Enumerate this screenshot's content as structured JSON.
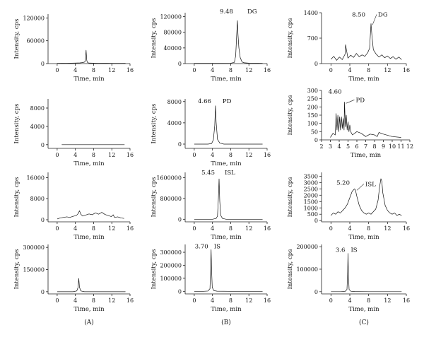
{
  "figure": {
    "column_labels": [
      "(A)",
      "(B)",
      "(C)"
    ],
    "ylabel": "Intensity, cps",
    "xlabel": "Time, min"
  },
  "chart_data": [
    {
      "type": "line",
      "panel": "A1",
      "xlim": [
        -2,
        16
      ],
      "xticks": [
        0,
        4,
        8,
        12,
        16
      ],
      "ylim": [
        0,
        130000
      ],
      "yticks": [
        0,
        60000,
        120000
      ],
      "series": [
        {
          "x": [
            0,
            1,
            2,
            3,
            4,
            5,
            5.5,
            6,
            6.2,
            6.35,
            6.5,
            6.6,
            6.8,
            7,
            8,
            9,
            10,
            11,
            12,
            13,
            14,
            15
          ],
          "y": [
            800,
            900,
            1000,
            1200,
            1500,
            1800,
            2500,
            4000,
            7000,
            35000,
            9000,
            4000,
            2000,
            1500,
            1200,
            1000,
            900,
            900,
            800,
            800,
            800,
            700
          ]
        }
      ],
      "annotations": []
    },
    {
      "type": "line",
      "panel": "B1",
      "xlim": [
        -2,
        16
      ],
      "xticks": [
        0,
        4,
        8,
        12,
        16
      ],
      "ylim": [
        0,
        130000
      ],
      "yticks": [
        0,
        40000,
        80000,
        120000
      ],
      "series": [
        {
          "x": [
            0,
            2,
            4,
            6,
            8,
            8.8,
            9.1,
            9.3,
            9.48,
            9.6,
            9.8,
            10.1,
            10.5,
            11,
            12,
            14,
            15
          ],
          "y": [
            800,
            800,
            800,
            800,
            1000,
            3000,
            20000,
            70000,
            110000,
            75000,
            40000,
            15000,
            4000,
            2000,
            1200,
            900,
            800
          ]
        }
      ],
      "annotations": [
        {
          "label": "9.48",
          "x": 9.48,
          "y": 110000
        },
        {
          "label": "DG",
          "x": 9.48,
          "y": 110000
        }
      ]
    },
    {
      "type": "line",
      "panel": "C1",
      "xlim": [
        -2,
        16
      ],
      "xticks": [
        0,
        4,
        8,
        12,
        16
      ],
      "ylim": [
        0,
        1400
      ],
      "yticks": [
        0,
        700,
        1400
      ],
      "series": [
        {
          "x": [
            0,
            0.6,
            1.2,
            1.8,
            2.4,
            3,
            3.1,
            3.6,
            4.2,
            4.8,
            5.4,
            6,
            6.6,
            7.2,
            7.8,
            8.2,
            8.5,
            8.7,
            9,
            9.6,
            10.2,
            10.8,
            11.4,
            12,
            12.6,
            13.2,
            13.8,
            14.4,
            15
          ],
          "y": [
            120,
            200,
            90,
            180,
            110,
            260,
            520,
            150,
            230,
            170,
            280,
            190,
            240,
            200,
            300,
            420,
            1100,
            760,
            380,
            260,
            180,
            240,
            160,
            210,
            140,
            190,
            120,
            180,
            110
          ]
        }
      ],
      "annotations": [
        {
          "label": "8.50",
          "x": 8.5,
          "y": 1100
        },
        {
          "label": "DG",
          "x": 8.5,
          "y": 1100
        }
      ]
    },
    {
      "type": "line",
      "panel": "A2",
      "xlim": [
        -2,
        16
      ],
      "xticks": [
        0,
        4,
        8,
        12,
        16
      ],
      "ylim": [
        -800,
        10000
      ],
      "yticks": [
        0,
        4000,
        8000
      ],
      "series": [
        {
          "x": [
            1,
            3,
            5,
            7,
            9,
            11,
            13,
            14.8
          ],
          "y": [
            0,
            0,
            0,
            0,
            0,
            0,
            0,
            0
          ]
        }
      ],
      "annotations": []
    },
    {
      "type": "line",
      "panel": "B2",
      "xlim": [
        -2,
        16
      ],
      "xticks": [
        0,
        4,
        8,
        12,
        16
      ],
      "ylim": [
        -800,
        8500
      ],
      "yticks": [
        0,
        4000,
        8000
      ],
      "series": [
        {
          "x": [
            0,
            1,
            2,
            3,
            3.8,
            4.2,
            4.5,
            4.66,
            4.8,
            5.1,
            5.6,
            6.5,
            8,
            10,
            12,
            14,
            15
          ],
          "y": [
            0,
            0,
            0,
            0,
            100,
            800,
            3500,
            7200,
            4200,
            900,
            200,
            0,
            0,
            0,
            0,
            0,
            0
          ]
        }
      ],
      "annotations": [
        {
          "label": "4.66",
          "x": 4.66,
          "y": 7200
        },
        {
          "label": "PD",
          "x": 4.66,
          "y": 7200
        }
      ]
    },
    {
      "type": "line",
      "panel": "C2",
      "xlim": [
        2,
        12
      ],
      "xticks": [
        2,
        3,
        4,
        5,
        6,
        7,
        8,
        9,
        10,
        11,
        12
      ],
      "ylim": [
        0,
        300
      ],
      "yticks": [
        0,
        50,
        100,
        150,
        200,
        250,
        300
      ],
      "series": [
        {
          "x": [
            3,
            3.3,
            3.55,
            3.65,
            3.75,
            3.85,
            3.95,
            4.05,
            4.15,
            4.25,
            4.35,
            4.45,
            4.55,
            4.6,
            4.7,
            4.8,
            4.9,
            5,
            5.1,
            5.2,
            5.3,
            5.5,
            6,
            6.5,
            7,
            7.5,
            8,
            8.3,
            8.5,
            9,
            10,
            11
          ],
          "y": [
            15,
            40,
            30,
            160,
            60,
            150,
            50,
            140,
            60,
            140,
            70,
            130,
            60,
            230,
            80,
            150,
            60,
            110,
            50,
            90,
            50,
            30,
            50,
            40,
            20,
            35,
            30,
            20,
            45,
            35,
            20,
            15
          ]
        }
      ],
      "annotations": [
        {
          "label": "4.60",
          "x": 4.6,
          "y": 230
        },
        {
          "label": "PD",
          "x": 4.6,
          "y": 230
        }
      ]
    },
    {
      "type": "line",
      "panel": "A3",
      "xlim": [
        -2,
        16
      ],
      "xticks": [
        0,
        4,
        8,
        12,
        16
      ],
      "ylim": [
        -800,
        18000
      ],
      "yticks": [
        0,
        8000,
        16000
      ],
      "series": [
        {
          "x": [
            0,
            0.7,
            1.4,
            2.1,
            2.8,
            3.5,
            4.2,
            4.6,
            4.9,
            5.2,
            5.6,
            6.3,
            7,
            7.7,
            8.4,
            9.1,
            9.8,
            10.5,
            11.2,
            11.9,
            12.3,
            12.6,
            13.3,
            14,
            14.7
          ],
          "y": [
            300,
            700,
            900,
            1100,
            900,
            1300,
            1600,
            2300,
            3400,
            2100,
            1400,
            1800,
            2200,
            1900,
            2600,
            2100,
            2800,
            2000,
            1600,
            1200,
            1900,
            900,
            1100,
            700,
            500
          ]
        }
      ],
      "annotations": []
    },
    {
      "type": "line",
      "panel": "B3",
      "xlim": [
        -2,
        16
      ],
      "xticks": [
        0,
        4,
        8,
        12,
        16
      ],
      "ylim": [
        -100000,
        1800000
      ],
      "yticks": [
        0,
        800000,
        1600000
      ],
      "series": [
        {
          "x": [
            0,
            2,
            4,
            4.8,
            5.1,
            5.3,
            5.45,
            5.6,
            5.8,
            6.2,
            7,
            9,
            12,
            15
          ],
          "y": [
            0,
            0,
            0,
            30000,
            120000,
            800000,
            1550000,
            700000,
            150000,
            30000,
            0,
            0,
            0,
            0
          ]
        }
      ],
      "annotations": [
        {
          "label": "5.45",
          "x": 5.45,
          "y": 1550000
        },
        {
          "label": "ISL",
          "x": 5.45,
          "y": 1550000
        }
      ]
    },
    {
      "type": "line",
      "panel": "C3",
      "xlim": [
        -2,
        16
      ],
      "xticks": [
        0,
        4,
        8,
        12,
        16
      ],
      "ylim": [
        -100,
        3800
      ],
      "yticks": [
        0,
        500,
        1000,
        1500,
        2000,
        2500,
        3000,
        3500
      ],
      "series": [
        {
          "x": [
            0,
            0.5,
            1,
            1.5,
            2,
            2.5,
            3,
            3.5,
            4,
            4.5,
            5,
            5.2,
            5.5,
            6,
            6.5,
            7,
            7.5,
            8,
            8.5,
            9,
            9.5,
            10,
            10.3,
            10.6,
            10.8,
            11,
            11.5,
            12,
            12.5,
            13,
            13.5,
            14,
            14.5,
            15
          ],
          "y": [
            400,
            600,
            500,
            700,
            600,
            800,
            1000,
            1300,
            1800,
            2300,
            2500,
            2400,
            1900,
            1200,
            800,
            600,
            500,
            600,
            500,
            700,
            900,
            1600,
            2600,
            3300,
            3100,
            2200,
            1200,
            800,
            600,
            500,
            600,
            400,
            500,
            400
          ]
        }
      ],
      "annotations": [
        {
          "label": "5.20",
          "x": 5.2,
          "y": 2500
        },
        {
          "label": "ISL",
          "x": 5.2,
          "y": 2500
        }
      ]
    },
    {
      "type": "line",
      "panel": "A4",
      "xlim": [
        -2,
        16
      ],
      "xticks": [
        0,
        4,
        8,
        12,
        16
      ],
      "ylim": [
        -15000,
        320000
      ],
      "yticks": [
        0,
        150000,
        300000
      ],
      "series": [
        {
          "x": [
            0,
            2,
            3.5,
            4.3,
            4.6,
            4.75,
            4.9,
            5.2,
            6,
            8,
            10,
            12,
            15
          ],
          "y": [
            0,
            0,
            0,
            5000,
            30000,
            90000,
            30000,
            5000,
            0,
            0,
            0,
            0,
            0
          ]
        }
      ],
      "annotations": []
    },
    {
      "type": "line",
      "panel": "B4",
      "xlim": [
        -2,
        16
      ],
      "xticks": [
        0,
        4,
        8,
        12,
        16
      ],
      "ylim": [
        -20000,
        360000
      ],
      "yticks": [
        0,
        100000,
        200000,
        300000
      ],
      "series": [
        {
          "x": [
            0,
            2,
            3,
            3.45,
            3.6,
            3.7,
            3.8,
            3.95,
            4.3,
            5,
            8,
            10,
            12,
            15
          ],
          "y": [
            0,
            0,
            2000,
            20000,
            180000,
            320000,
            170000,
            30000,
            5000,
            1000,
            0,
            0,
            0,
            0
          ]
        }
      ],
      "annotations": [
        {
          "label": "3.70",
          "x": 3.7,
          "y": 320000
        },
        {
          "label": "IS",
          "x": 3.7,
          "y": 320000
        }
      ]
    },
    {
      "type": "line",
      "panel": "C4",
      "xlim": [
        -2,
        16
      ],
      "xticks": [
        0,
        4,
        8,
        12,
        16
      ],
      "ylim": [
        -10000,
        210000
      ],
      "yticks": [
        0,
        100000,
        200000
      ],
      "series": [
        {
          "x": [
            0,
            2,
            3,
            3.4,
            3.55,
            3.62,
            3.7,
            3.85,
            4.2,
            5,
            8,
            10,
            12,
            15
          ],
          "y": [
            0,
            0,
            1000,
            10000,
            90000,
            170000,
            80000,
            10000,
            2000,
            500,
            0,
            0,
            0,
            0
          ]
        }
      ],
      "annotations": [
        {
          "label": "3.6",
          "x": 3.62,
          "y": 170000
        },
        {
          "label": "IS",
          "x": 3.62,
          "y": 170000
        }
      ]
    }
  ]
}
